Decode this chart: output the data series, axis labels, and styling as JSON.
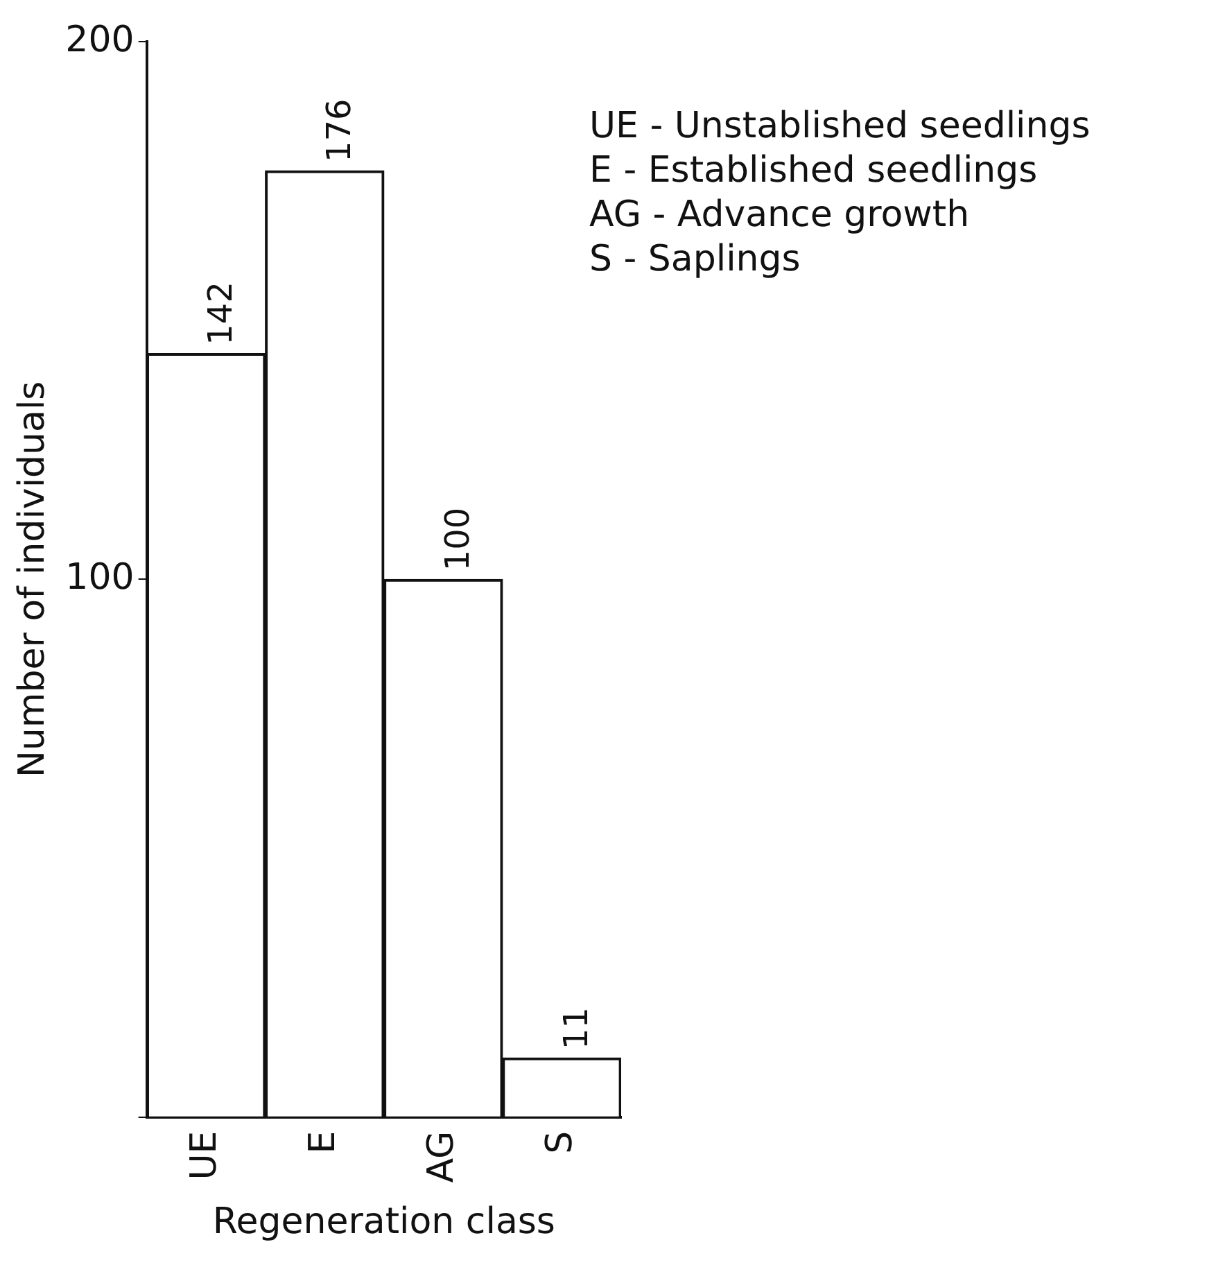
{
  "chart_data": {
    "type": "bar",
    "xlabel": "Regeneration class",
    "ylabel": "Number of individuals",
    "categories": [
      "UE",
      "E",
      "AG",
      "S"
    ],
    "values": [
      142,
      176,
      100,
      11
    ],
    "color": "#ffffff",
    "ylim": [
      0,
      200
    ],
    "yticks": [
      {
        "value": 0,
        "label": null
      },
      100,
      200
    ],
    "grid": false,
    "legend": false,
    "data_labels": true,
    "annotations": [
      "UE - Unstablished seedlings",
      "E - Established seedlings",
      "AG - Advance growth",
      "S - Saplings"
    ]
  }
}
